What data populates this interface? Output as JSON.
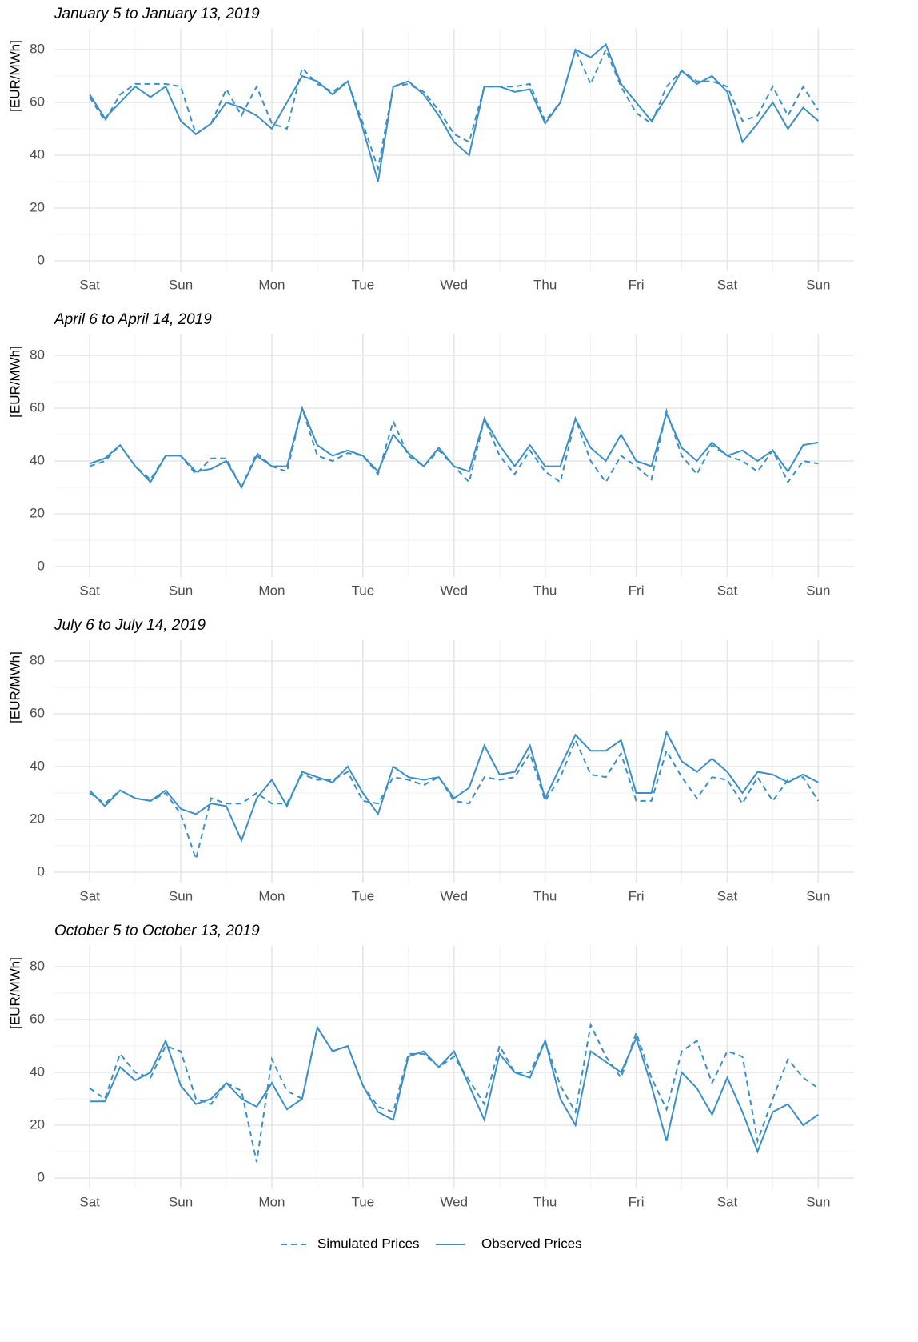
{
  "chart_data": [
    {
      "type": "line",
      "title": "January 5 to January 13, 2019",
      "y_label": "[EUR/MWh]",
      "x": [
        0,
        4,
        8,
        12,
        16,
        20,
        24,
        28,
        32,
        36,
        40,
        44,
        48,
        52,
        56,
        60,
        64,
        68,
        72,
        76,
        80,
        84,
        88,
        92,
        96,
        100,
        104,
        108,
        112,
        116,
        120,
        124,
        128,
        132,
        136,
        140,
        144,
        148,
        152,
        156,
        160,
        164,
        168,
        172,
        176,
        180,
        184,
        188,
        192
      ],
      "xlim": [
        -9.3,
        201.4
      ],
      "xticks": [
        {
          "value": 0,
          "label": "Sat"
        },
        {
          "value": 24,
          "label": "Sun"
        },
        {
          "value": 48,
          "label": "Mon"
        },
        {
          "value": 72,
          "label": "Tue"
        },
        {
          "value": 96,
          "label": "Wed"
        },
        {
          "value": 120,
          "label": "Thu"
        },
        {
          "value": 144,
          "label": "Fri"
        },
        {
          "value": 168,
          "label": "Sat"
        },
        {
          "value": 192,
          "label": "Sun"
        }
      ],
      "xminorticks": [
        12,
        36,
        60,
        84,
        108,
        132,
        156,
        180
      ],
      "ylim": [
        -4,
        88
      ],
      "yticks": [
        0,
        20,
        40,
        60,
        80
      ],
      "yminorticks": [
        10,
        30,
        50,
        70
      ],
      "grid": true,
      "series": [
        {
          "name": "Simulated Prices",
          "color": "#3a8fc4",
          "dashed": true,
          "values": [
            62,
            53,
            63,
            67,
            67,
            67,
            66,
            48,
            52,
            65,
            55,
            66,
            52,
            50,
            73,
            67,
            64,
            68,
            52,
            35,
            66,
            67,
            64,
            57,
            48,
            45,
            66,
            66,
            66,
            67,
            53,
            60,
            80,
            67,
            80,
            66,
            56,
            52,
            66,
            72,
            68,
            68,
            66,
            53,
            55,
            66,
            55,
            66,
            57
          ]
        },
        {
          "name": "Observed Prices",
          "color": "#3a8fc4",
          "dashed": false,
          "values": [
            63,
            54,
            60,
            66,
            62,
            66,
            53,
            48,
            52,
            60,
            58,
            55,
            50,
            60,
            70,
            68,
            63,
            68,
            50,
            30,
            66,
            68,
            63,
            55,
            45,
            40,
            66,
            66,
            64,
            65,
            52,
            60,
            80,
            77,
            82,
            67,
            60,
            53,
            62,
            72,
            67,
            70,
            64,
            45,
            52,
            60,
            50,
            58,
            53
          ]
        }
      ]
    },
    {
      "type": "line",
      "title": "April 6 to April 14, 2019",
      "y_label": "[EUR/MWh]",
      "x": [
        0,
        4,
        8,
        12,
        16,
        20,
        24,
        28,
        32,
        36,
        40,
        44,
        48,
        52,
        56,
        60,
        64,
        68,
        72,
        76,
        80,
        84,
        88,
        92,
        96,
        100,
        104,
        108,
        112,
        116,
        120,
        124,
        128,
        132,
        136,
        140,
        144,
        148,
        152,
        156,
        160,
        164,
        168,
        172,
        176,
        180,
        184,
        188,
        192
      ],
      "xlim": [
        -9.3,
        201.4
      ],
      "xticks": [
        {
          "value": 0,
          "label": "Sat"
        },
        {
          "value": 24,
          "label": "Sun"
        },
        {
          "value": 48,
          "label": "Mon"
        },
        {
          "value": 72,
          "label": "Tue"
        },
        {
          "value": 96,
          "label": "Wed"
        },
        {
          "value": 120,
          "label": "Thu"
        },
        {
          "value": 144,
          "label": "Fri"
        },
        {
          "value": 168,
          "label": "Sat"
        },
        {
          "value": 192,
          "label": "Sun"
        }
      ],
      "xminorticks": [
        12,
        36,
        60,
        84,
        108,
        132,
        156,
        180
      ],
      "ylim": [
        -4,
        88
      ],
      "yticks": [
        0,
        20,
        40,
        60,
        80
      ],
      "yminorticks": [
        10,
        30,
        50,
        70
      ],
      "grid": true,
      "series": [
        {
          "name": "Simulated Prices",
          "color": "#3a8fc4",
          "dashed": true,
          "values": [
            38,
            40,
            46,
            38,
            33,
            42,
            42,
            35,
            41,
            41,
            30,
            43,
            38,
            36,
            60,
            42,
            40,
            43,
            42,
            35,
            55,
            42,
            38,
            44,
            38,
            32,
            56,
            42,
            35,
            44,
            36,
            32,
            56,
            40,
            32,
            42,
            38,
            33,
            59,
            42,
            35,
            46,
            42,
            40,
            36,
            44,
            32,
            40,
            39
          ]
        },
        {
          "name": "Observed Prices",
          "color": "#3a8fc4",
          "dashed": false,
          "values": [
            39,
            41,
            46,
            38,
            32,
            42,
            42,
            36,
            37,
            40,
            30,
            42,
            38,
            38,
            60,
            46,
            42,
            44,
            42,
            36,
            50,
            43,
            38,
            45,
            38,
            36,
            56,
            46,
            38,
            46,
            38,
            38,
            56,
            45,
            40,
            50,
            40,
            38,
            58,
            45,
            40,
            47,
            42,
            44,
            40,
            44,
            36,
            46,
            47
          ]
        }
      ]
    },
    {
      "type": "line",
      "title": "July 6 to July 14, 2019",
      "y_label": "[EUR/MWh]",
      "x": [
        0,
        4,
        8,
        12,
        16,
        20,
        24,
        28,
        32,
        36,
        40,
        44,
        48,
        52,
        56,
        60,
        64,
        68,
        72,
        76,
        80,
        84,
        88,
        92,
        96,
        100,
        104,
        108,
        112,
        116,
        120,
        124,
        128,
        132,
        136,
        140,
        144,
        148,
        152,
        156,
        160,
        164,
        168,
        172,
        176,
        180,
        184,
        188,
        192
      ],
      "xlim": [
        -9.3,
        201.4
      ],
      "xticks": [
        {
          "value": 0,
          "label": "Sat"
        },
        {
          "value": 24,
          "label": "Sun"
        },
        {
          "value": 48,
          "label": "Mon"
        },
        {
          "value": 72,
          "label": "Tue"
        },
        {
          "value": 96,
          "label": "Wed"
        },
        {
          "value": 120,
          "label": "Thu"
        },
        {
          "value": 144,
          "label": "Fri"
        },
        {
          "value": 168,
          "label": "Sat"
        },
        {
          "value": 192,
          "label": "Sun"
        }
      ],
      "xminorticks": [
        12,
        36,
        60,
        84,
        108,
        132,
        156,
        180
      ],
      "ylim": [
        -4,
        88
      ],
      "yticks": [
        0,
        20,
        40,
        60,
        80
      ],
      "yminorticks": [
        10,
        30,
        50,
        70
      ],
      "grid": true,
      "series": [
        {
          "name": "Simulated Prices",
          "color": "#3a8fc4",
          "dashed": true,
          "values": [
            30,
            26,
            31,
            28,
            27,
            30,
            22,
            5,
            28,
            26,
            26,
            30,
            26,
            26,
            37,
            35,
            35,
            38,
            27,
            26,
            36,
            35,
            33,
            36,
            27,
            26,
            36,
            35,
            36,
            45,
            27,
            36,
            50,
            37,
            36,
            45,
            27,
            27,
            46,
            36,
            28,
            36,
            35,
            26,
            36,
            27,
            35,
            36,
            27
          ]
        },
        {
          "name": "Observed Prices",
          "color": "#3a8fc4",
          "dashed": false,
          "values": [
            31,
            25,
            31,
            28,
            27,
            31,
            24,
            22,
            26,
            25,
            12,
            28,
            35,
            25,
            38,
            36,
            34,
            40,
            30,
            22,
            40,
            36,
            35,
            36,
            28,
            32,
            48,
            37,
            38,
            48,
            28,
            40,
            52,
            46,
            46,
            50,
            30,
            30,
            53,
            42,
            38,
            43,
            38,
            30,
            38,
            37,
            34,
            37,
            34
          ]
        }
      ]
    },
    {
      "type": "line",
      "title": "October 5 to October 13, 2019",
      "y_label": "[EUR/MWh]",
      "x": [
        0,
        4,
        8,
        12,
        16,
        20,
        24,
        28,
        32,
        36,
        40,
        44,
        48,
        52,
        56,
        60,
        64,
        68,
        72,
        76,
        80,
        84,
        88,
        92,
        96,
        100,
        104,
        108,
        112,
        116,
        120,
        124,
        128,
        132,
        136,
        140,
        144,
        148,
        152,
        156,
        160,
        164,
        168,
        172,
        176,
        180,
        184,
        188,
        192
      ],
      "xlim": [
        -9.3,
        201.4
      ],
      "xticks": [
        {
          "value": 0,
          "label": "Sat"
        },
        {
          "value": 24,
          "label": "Sun"
        },
        {
          "value": 48,
          "label": "Mon"
        },
        {
          "value": 72,
          "label": "Tue"
        },
        {
          "value": 96,
          "label": "Wed"
        },
        {
          "value": 120,
          "label": "Thu"
        },
        {
          "value": 144,
          "label": "Fri"
        },
        {
          "value": 168,
          "label": "Sat"
        },
        {
          "value": 192,
          "label": "Sun"
        }
      ],
      "xminorticks": [
        12,
        36,
        60,
        84,
        108,
        132,
        156,
        180
      ],
      "ylim": [
        -4,
        88
      ],
      "yticks": [
        0,
        20,
        40,
        60,
        80
      ],
      "yminorticks": [
        10,
        30,
        50,
        70
      ],
      "grid": true,
      "legend": "bottom",
      "series": [
        {
          "name": "Simulated Prices",
          "color": "#3a8fc4",
          "dashed": true,
          "values": [
            34,
            30,
            47,
            40,
            38,
            50,
            48,
            30,
            28,
            36,
            33,
            6,
            45,
            33,
            30,
            57,
            48,
            50,
            35,
            27,
            25,
            47,
            47,
            42,
            46,
            37,
            28,
            50,
            40,
            40,
            52,
            35,
            25,
            58,
            46,
            38,
            55,
            38,
            26,
            48,
            52,
            36,
            48,
            46,
            14,
            30,
            45,
            38,
            34
          ]
        },
        {
          "name": "Observed Prices",
          "color": "#3a8fc4",
          "dashed": false,
          "values": [
            29,
            29,
            42,
            37,
            40,
            52,
            35,
            28,
            30,
            36,
            30,
            27,
            36,
            26,
            30,
            57,
            48,
            50,
            35,
            25,
            22,
            46,
            48,
            42,
            48,
            35,
            22,
            47,
            40,
            38,
            52,
            30,
            20,
            48,
            44,
            40,
            53,
            35,
            14,
            40,
            34,
            24,
            38,
            25,
            10,
            25,
            28,
            20,
            24
          ]
        }
      ]
    }
  ]
}
